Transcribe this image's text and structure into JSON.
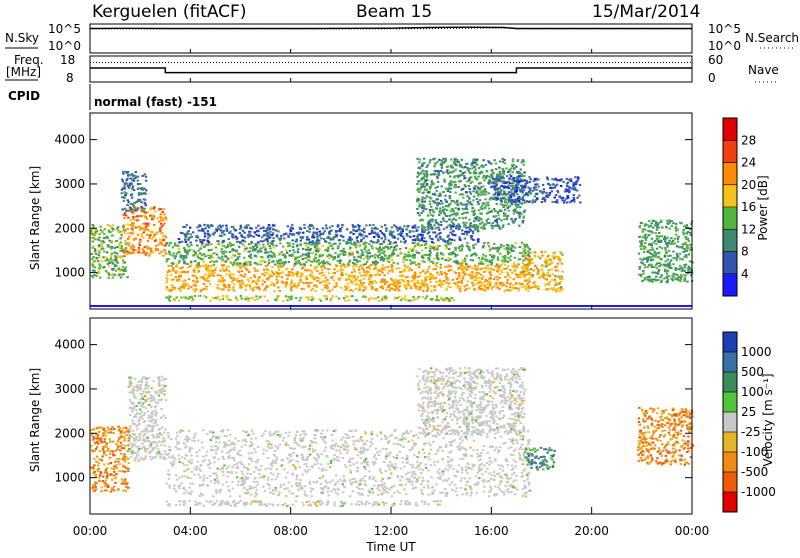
{
  "header": {
    "station": "Kerguelen (fitACF)",
    "beam": "Beam 15",
    "date": "15/Mar/2014"
  },
  "strip_labels": {
    "nsky": "N.Sky",
    "nsearch": "N.Search",
    "freq_line1": "Freq.",
    "freq_line2": "[MHz]",
    "nave": "Nave",
    "cpid": "CPID",
    "mode": "normal (fast) -151"
  },
  "chart_data": [
    {
      "type": "line",
      "name": "noise",
      "y_left_ticks": [
        "10^5",
        "10^0"
      ],
      "y_right_ticks": [
        "10^5",
        "10^0"
      ],
      "series": [
        {
          "name": "N.Sky",
          "x": [
            "00:00",
            "01:30",
            "03:00",
            "06:00",
            "09:00",
            "12:00",
            "13:30",
            "15:00",
            "16:30",
            "17:00",
            "20:00",
            "24:00"
          ],
          "values": [
            30000,
            32000,
            30000,
            30000,
            30000,
            34000,
            45000,
            52000,
            45000,
            30000,
            30000,
            30000
          ]
        },
        {
          "name": "N.Search",
          "x": [
            "00:00",
            "12:00",
            "16:30",
            "17:00",
            "24:00"
          ],
          "values": [
            25000,
            25000,
            38000,
            25000,
            25000
          ]
        }
      ]
    },
    {
      "type": "line",
      "name": "frequency",
      "y_left_ticks": [
        "18",
        "8"
      ],
      "y_right_ticks": [
        "60",
        "0"
      ],
      "ylim": [
        8,
        18
      ],
      "series": [
        {
          "name": "Freq.",
          "x": [
            "00:00",
            "03:00",
            "03:00",
            "17:00",
            "17:00",
            "24:00"
          ],
          "values": [
            13.4,
            13.4,
            11.6,
            11.6,
            13.4,
            13.4
          ]
        },
        {
          "name": "Nave",
          "x": [
            "00:00",
            "24:00"
          ],
          "values": [
            45,
            45
          ]
        }
      ]
    },
    {
      "type": "heatmap",
      "name": "power",
      "ylabel": "Slant Range [km]",
      "yticks": [
        1000,
        2000,
        3000,
        4000
      ],
      "ylim": [
        180,
        4600
      ],
      "colorbar": {
        "label": "Power [dB]",
        "ticks": [
          4,
          8,
          12,
          16,
          20,
          24,
          28
        ],
        "range": [
          0,
          32
        ]
      },
      "colors": [
        "#1a1aff",
        "#3454b0",
        "#3e8a70",
        "#52b43c",
        "#f5c21a",
        "#ff8c00",
        "#f04010",
        "#e00000"
      ],
      "regions": [
        {
          "t0": 3.0,
          "t1": 17.5,
          "r0": 600,
          "r1": 1200,
          "level": 20
        },
        {
          "t0": 3.0,
          "t1": 17.5,
          "r0": 1200,
          "r1": 1700,
          "level": 13
        },
        {
          "t0": 3.5,
          "t1": 15.5,
          "r0": 1700,
          "r1": 2100,
          "level": 7
        },
        {
          "t0": 0.0,
          "t1": 1.5,
          "r0": 900,
          "r1": 2100,
          "level": 14
        },
        {
          "t0": 1.3,
          "t1": 3.0,
          "r0": 1400,
          "r1": 2500,
          "level": 22
        },
        {
          "t0": 1.2,
          "t1": 2.2,
          "r0": 2400,
          "r1": 3300,
          "level": 8
        },
        {
          "t0": 17.2,
          "t1": 18.8,
          "r0": 600,
          "r1": 1500,
          "level": 19
        },
        {
          "t0": 13.0,
          "t1": 17.3,
          "r0": 2000,
          "r1": 3600,
          "level": 11
        },
        {
          "t0": 21.8,
          "t1": 24.0,
          "r0": 800,
          "r1": 2200,
          "level": 12
        },
        {
          "t0": 16.0,
          "t1": 19.5,
          "r0": 2600,
          "r1": 3200,
          "level": 6
        },
        {
          "t0": 3.0,
          "t1": 14.5,
          "r0": 380,
          "r1": 500,
          "level": 16
        }
      ]
    },
    {
      "type": "heatmap",
      "name": "velocity",
      "ylabel": "Slant Range [km]",
      "xlabel": "Time UT",
      "xticks": [
        "00:00",
        "04:00",
        "08:00",
        "12:00",
        "16:00",
        "20:00",
        "00:00"
      ],
      "yticks": [
        1000,
        2000,
        3000,
        4000
      ],
      "ylim": [
        180,
        4600
      ],
      "colorbar": {
        "label": "Velocity [m s⁻¹]",
        "ticks": [
          "1000",
          "500",
          "100",
          "25",
          "-25",
          "-100",
          "-500",
          "-1000"
        ]
      },
      "colors": [
        "#1d3fb3",
        "#3a6fa8",
        "#3e8a5a",
        "#52c43c",
        "#c8c8c8",
        "#e6b428",
        "#f08c14",
        "#f05a0a",
        "#e00000"
      ],
      "regions": [
        {
          "t0": 3.0,
          "t1": 17.5,
          "r0": 600,
          "r1": 2100,
          "level": "-25"
        },
        {
          "t0": 1.5,
          "t1": 3.0,
          "r0": 1400,
          "r1": 3300,
          "level": "-25"
        },
        {
          "t0": 0.0,
          "t1": 1.5,
          "r0": 700,
          "r1": 2200,
          "level": "-500"
        },
        {
          "t0": 13.0,
          "t1": 17.3,
          "r0": 2000,
          "r1": 3500,
          "level": "-25"
        },
        {
          "t0": 17.3,
          "t1": 18.5,
          "r0": 1200,
          "r1": 1700,
          "level": "100"
        },
        {
          "t0": 21.8,
          "t1": 24.0,
          "r0": 1300,
          "r1": 2600,
          "level": "-500"
        },
        {
          "t0": 3.0,
          "t1": 14.0,
          "r0": 380,
          "r1": 500,
          "level": "-25"
        }
      ]
    }
  ]
}
